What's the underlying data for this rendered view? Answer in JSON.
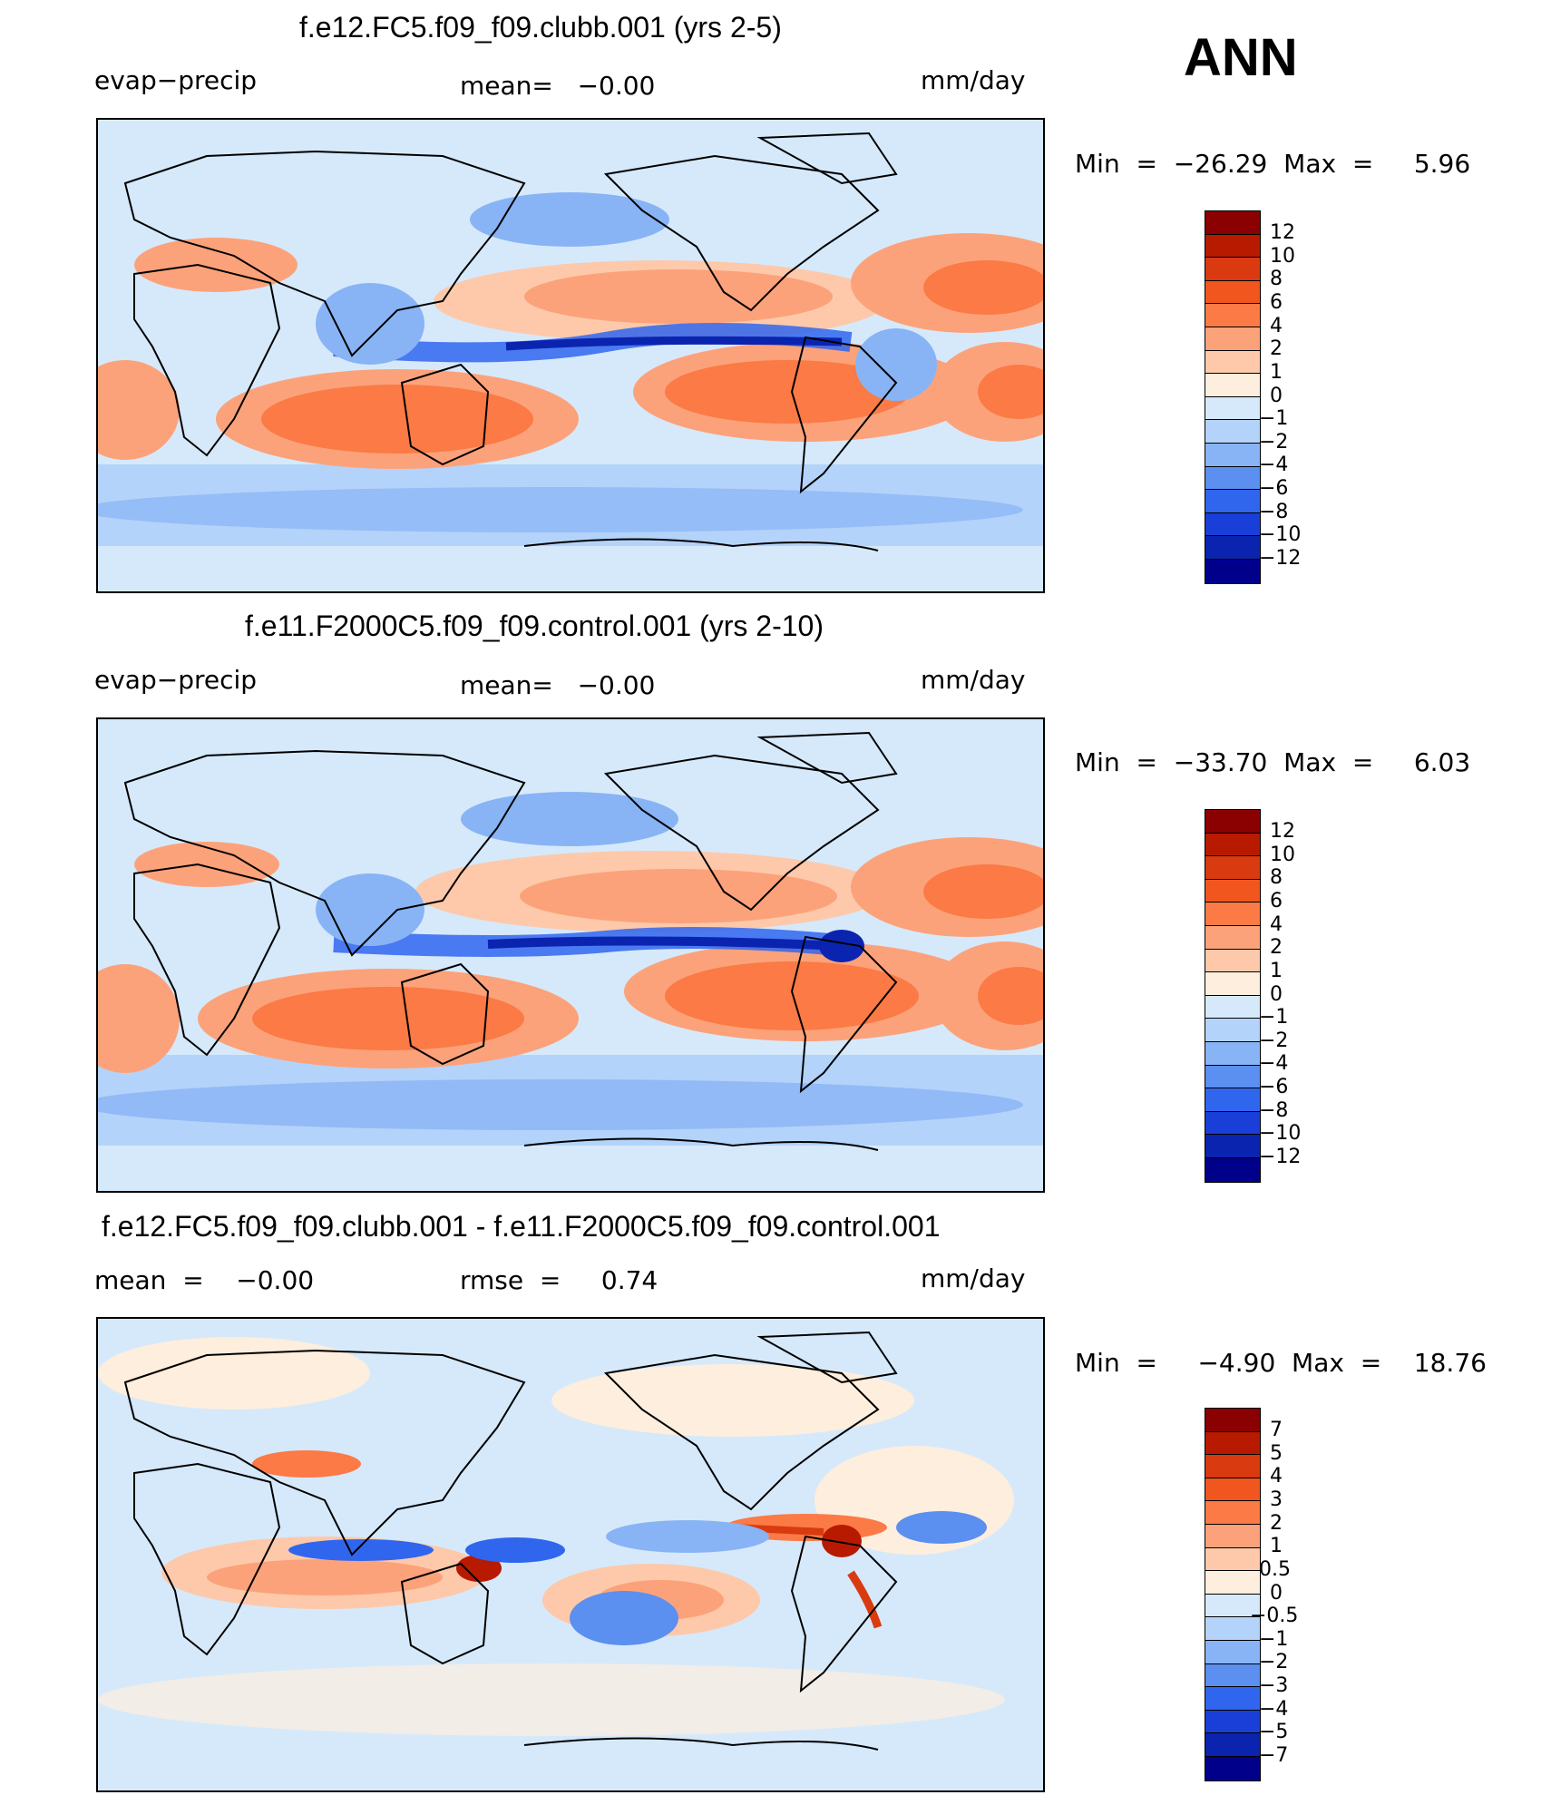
{
  "season": "ANN",
  "panels": [
    {
      "title": "f.e12.FC5.f09_f09.clubb.001 (yrs 2-5)",
      "left_label": "evap−precip",
      "center_label": "mean=   −0.00",
      "units": "mm/day",
      "min_max": "Min  =  −26.29  Max  =     5.96",
      "colorbar": {
        "labels": [
          "12",
          "10",
          "8",
          "6",
          "4",
          "2",
          "1",
          "0",
          "−1",
          "−2",
          "−4",
          "−6",
          "−8",
          "−10",
          "−12"
        ],
        "colors": [
          "#8b0000",
          "#b81a00",
          "#d93a10",
          "#f2561f",
          "#fb7a45",
          "#fca27a",
          "#fdc9aa",
          "#feeedd",
          "#d6e9fb",
          "#b4d3fa",
          "#88b4f5",
          "#5b8ff0",
          "#3066ee",
          "#1a3fd8",
          "#0b24b0",
          "#00008b"
        ]
      }
    },
    {
      "title": "f.e11.F2000C5.f09_f09.control.001 (yrs 2-10)",
      "left_label": "evap−precip",
      "center_label": "mean=   −0.00",
      "units": "mm/day",
      "min_max": "Min  =  −33.70  Max  =     6.03",
      "colorbar": {
        "labels": [
          "12",
          "10",
          "8",
          "6",
          "4",
          "2",
          "1",
          "0",
          "−1",
          "−2",
          "−4",
          "−6",
          "−8",
          "−10",
          "−12"
        ],
        "colors": [
          "#8b0000",
          "#b81a00",
          "#d93a10",
          "#f2561f",
          "#fb7a45",
          "#fca27a",
          "#fdc9aa",
          "#feeedd",
          "#d6e9fb",
          "#b4d3fa",
          "#88b4f5",
          "#5b8ff0",
          "#3066ee",
          "#1a3fd8",
          "#0b24b0",
          "#00008b"
        ]
      }
    },
    {
      "title": "f.e12.FC5.f09_f09.clubb.001 - f.e11.F2000C5.f09_f09.control.001",
      "left_label": "mean  =    −0.00",
      "center_label": "rmse  =     0.74",
      "units": "mm/day",
      "min_max": "Min  =     −4.90  Max  =    18.76",
      "colorbar": {
        "labels": [
          "7",
          "5",
          "4",
          "3",
          "2",
          "1",
          "0.5",
          "0",
          "−0.5",
          "−1",
          "−2",
          "−3",
          "−4",
          "−5",
          "−7"
        ],
        "colors": [
          "#8b0000",
          "#b81a00",
          "#d93a10",
          "#f2561f",
          "#fb7a45",
          "#fca27a",
          "#fdc9aa",
          "#feeedd",
          "#d6e9fb",
          "#b4d3fa",
          "#88b4f5",
          "#5b8ff0",
          "#3066ee",
          "#1a3fd8",
          "#0b24b0",
          "#00008b"
        ]
      }
    }
  ]
}
